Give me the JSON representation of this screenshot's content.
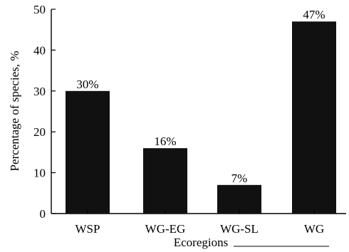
{
  "chart_data": {
    "type": "bar",
    "categories": [
      "WSP",
      "WG-EG",
      "WG-SL",
      "WG"
    ],
    "values": [
      30,
      16,
      7,
      47
    ],
    "data_labels": [
      "30%",
      "16%",
      "7%",
      "47%"
    ],
    "title": "",
    "xlabel": "Ecoregions",
    "ylabel": "Percentage of species, %",
    "ylim": [
      0,
      50
    ],
    "yticks": [
      0,
      10,
      20,
      30,
      40,
      50
    ],
    "grid": false,
    "bar_color": "#111111"
  }
}
